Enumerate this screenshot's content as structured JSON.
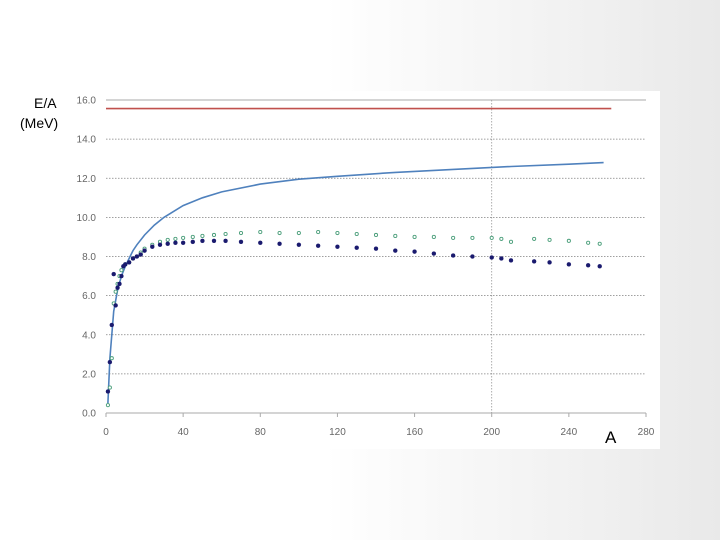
{
  "chart_data": {
    "type": "scatter",
    "title": "",
    "ylabel_lines": [
      "E/A",
      "(MeV)"
    ],
    "xlabel": "A",
    "xlim": [
      0,
      280
    ],
    "ylim": [
      0,
      16
    ],
    "xticks": [
      "0",
      "40",
      "80",
      "120",
      "160",
      "200",
      "240",
      "280"
    ],
    "yticks": [
      "0.0",
      "2.0",
      "4.0",
      "6.0",
      "8.0",
      "10.0",
      "12.0",
      "14.0",
      "16.0"
    ],
    "grid": true,
    "colors": {
      "red_line": "#c0504d",
      "blue_curve": "#4f81bd",
      "green_points": "#4a9e7a",
      "navy_points": "#1a1a6e",
      "grid": "#808080",
      "ref_line": "#999999"
    },
    "series": [
      {
        "kind": "constant-line",
        "color": "#c0504d",
        "x": [
          0,
          262
        ],
        "y": [
          15.56,
          15.56
        ]
      },
      {
        "kind": "curve",
        "color": "#4f81bd",
        "x": [
          1,
          2,
          4,
          6,
          8,
          10,
          12,
          14,
          16,
          20,
          25,
          30,
          40,
          50,
          60,
          80,
          100,
          120,
          150,
          180,
          210,
          240,
          258
        ],
        "y": [
          0.5,
          2.8,
          5.2,
          6.3,
          7.0,
          7.5,
          7.9,
          8.3,
          8.6,
          9.1,
          9.6,
          10.0,
          10.6,
          11.0,
          11.3,
          11.7,
          11.95,
          12.1,
          12.3,
          12.45,
          12.6,
          12.72,
          12.8
        ]
      },
      {
        "kind": "points",
        "color": "#4a9e7a",
        "x": [
          1,
          2,
          3,
          4,
          5,
          6,
          7,
          8,
          9,
          10,
          12,
          14,
          16,
          18,
          20,
          24,
          28,
          32,
          36,
          40,
          45,
          50,
          56,
          62,
          70,
          80,
          90,
          100,
          110,
          120,
          130,
          140,
          150,
          160,
          170,
          180,
          190,
          200,
          205,
          210,
          222,
          230,
          240,
          250,
          256
        ],
        "y": [
          0.4,
          1.3,
          2.8,
          5.6,
          6.2,
          6.6,
          7.0,
          7.3,
          7.5,
          7.6,
          7.7,
          7.9,
          8.0,
          8.2,
          8.4,
          8.6,
          8.75,
          8.85,
          8.9,
          8.95,
          9.0,
          9.05,
          9.1,
          9.15,
          9.2,
          9.25,
          9.2,
          9.2,
          9.25,
          9.2,
          9.15,
          9.1,
          9.05,
          9.0,
          9.0,
          8.95,
          8.95,
          8.95,
          8.9,
          8.75,
          8.9,
          8.85,
          8.8,
          8.7,
          8.65
        ]
      },
      {
        "kind": "points",
        "color": "#1a1a6e",
        "x": [
          1,
          2,
          3,
          4,
          5,
          6,
          7,
          8,
          9,
          10,
          12,
          14,
          16,
          18,
          20,
          24,
          28,
          32,
          36,
          40,
          45,
          50,
          56,
          62,
          70,
          80,
          90,
          100,
          110,
          120,
          130,
          140,
          150,
          160,
          170,
          180,
          190,
          200,
          205,
          210,
          222,
          230,
          240,
          250,
          256
        ],
        "y": [
          1.1,
          2.6,
          4.5,
          7.1,
          5.5,
          6.4,
          6.6,
          7.0,
          7.5,
          7.6,
          7.7,
          7.9,
          8.0,
          8.1,
          8.3,
          8.5,
          8.6,
          8.65,
          8.7,
          8.7,
          8.75,
          8.8,
          8.8,
          8.8,
          8.75,
          8.7,
          8.65,
          8.6,
          8.55,
          8.5,
          8.45,
          8.4,
          8.3,
          8.25,
          8.15,
          8.05,
          8.0,
          7.95,
          7.9,
          7.8,
          7.75,
          7.7,
          7.6,
          7.55,
          7.5
        ]
      }
    ],
    "reference_line": {
      "x": 200
    }
  }
}
